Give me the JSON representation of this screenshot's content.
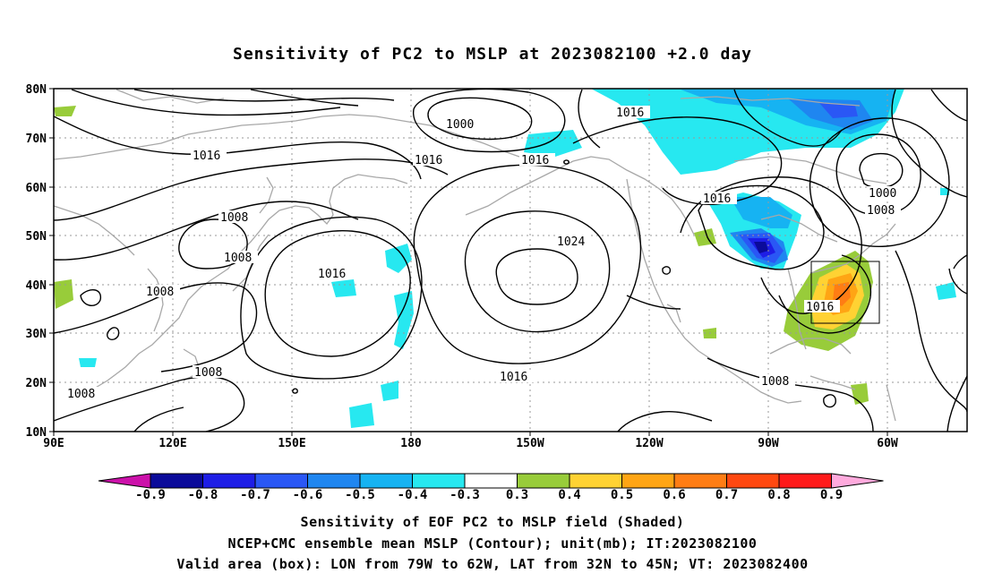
{
  "title": "Sensitivity of PC2 to MSLP at 2023082100 +2.0 day",
  "lat_labels": [
    "80N",
    "70N",
    "60N",
    "50N",
    "40N",
    "30N",
    "20N",
    "10N"
  ],
  "lon_labels": [
    "90E",
    "120E",
    "150E",
    "180",
    "150W",
    "120W",
    "90W",
    "60W"
  ],
  "contour_labels": [
    {
      "text": "1000"
    },
    {
      "text": "1016"
    },
    {
      "text": "1016"
    },
    {
      "text": "1016"
    },
    {
      "text": "1016"
    },
    {
      "text": "1016"
    },
    {
      "text": "1000"
    },
    {
      "text": "1008"
    },
    {
      "text": "1008"
    },
    {
      "text": "1008"
    },
    {
      "text": "1016"
    },
    {
      "text": "1024"
    },
    {
      "text": "1008"
    },
    {
      "text": "1008"
    },
    {
      "text": "1008"
    },
    {
      "text": "1016"
    },
    {
      "text": "1016"
    },
    {
      "text": "1008"
    }
  ],
  "colorbar": {
    "labels": [
      "-0.9",
      "-0.8",
      "-0.7",
      "-0.6",
      "-0.5",
      "-0.4",
      "-0.3",
      "0.3",
      "0.4",
      "0.5",
      "0.6",
      "0.7",
      "0.8",
      "0.9"
    ],
    "colors": [
      "#0b0b9a",
      "#1e1ee6",
      "#2a57f5",
      "#1f86f0",
      "#16b3f2",
      "#27e8f0",
      "#ffffff",
      "#98cc3a",
      "#ffd233",
      "#ffa514",
      "#ff7d14",
      "#ff4810",
      "#ff1a1a"
    ],
    "left_tip": "#cc11aa",
    "right_tip": "#ffaadd"
  },
  "footer": {
    "line1": "Sensitivity of EOF PC2 to MSLP field (Shaded)",
    "line2": "NCEP+CMC ensemble mean MSLP (Contour); unit(mb); IT:2023082100",
    "line3": "Valid area (box): LON from 79W to 62W, LAT from 32N to 45N; VT: 2023082400"
  }
}
